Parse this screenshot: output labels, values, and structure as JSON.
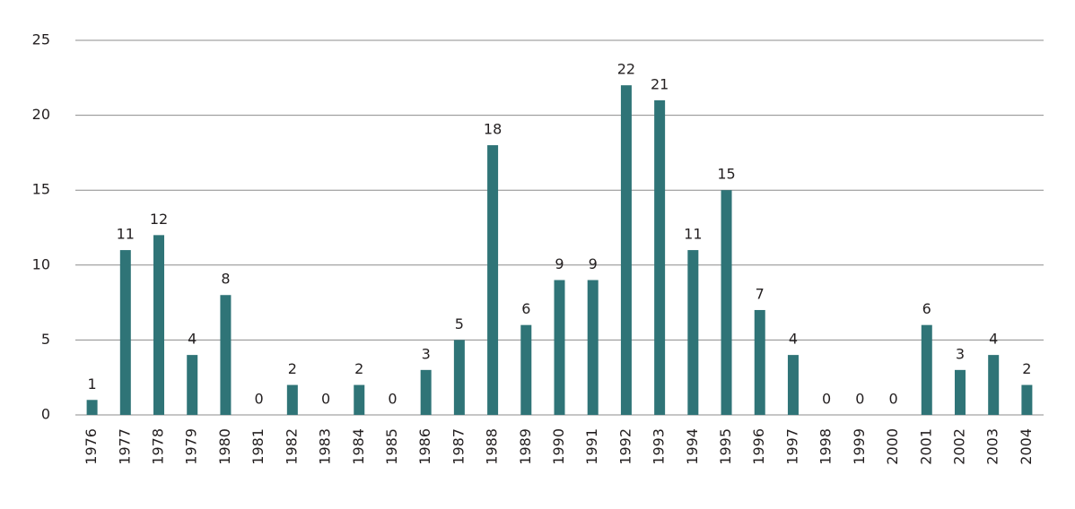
{
  "chart_data": {
    "type": "bar",
    "categories": [
      "1976",
      "1977",
      "1978",
      "1979",
      "1980",
      "1981",
      "1982",
      "1983",
      "1984",
      "1985",
      "1986",
      "1987",
      "1988",
      "1989",
      "1990",
      "1991",
      "1992",
      "1993",
      "1994",
      "1995",
      "1996",
      "1997",
      "1998",
      "1999",
      "2000",
      "2001",
      "2002",
      "2003",
      "2004"
    ],
    "values": [
      1,
      11,
      12,
      4,
      8,
      0,
      2,
      0,
      2,
      0,
      3,
      5,
      18,
      6,
      9,
      9,
      22,
      21,
      11,
      15,
      7,
      4,
      0,
      0,
      0,
      6,
      3,
      4,
      2
    ],
    "color": "#2f7477",
    "ylim": [
      0,
      25
    ],
    "yticks": [
      0,
      5,
      10,
      15,
      20,
      25
    ],
    "grid": true
  }
}
